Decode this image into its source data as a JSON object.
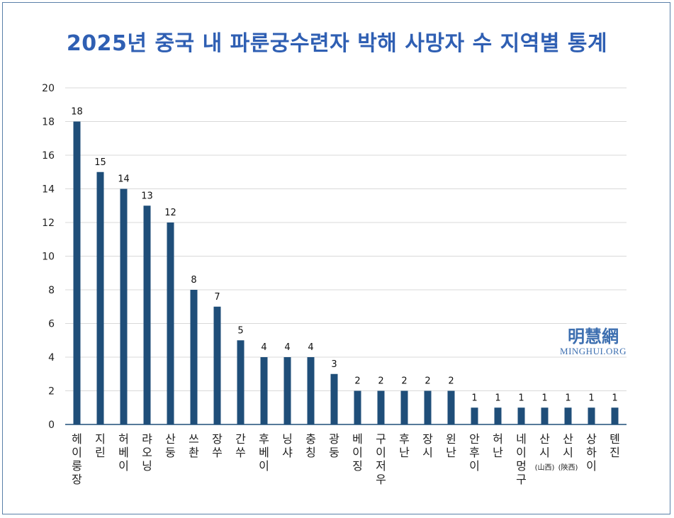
{
  "title": "2025년 중국 내 파룬궁수련자 박해 사망자 수 지역별 통계",
  "watermark": {
    "cjk": "明慧網",
    "latin": "MINGHUI.ORG"
  },
  "colors": {
    "bar": "#1f4e79",
    "title": "#2f5fb3",
    "grid": "#d9d9d9",
    "frame": "#5a7fa8"
  },
  "chart_data": {
    "type": "bar",
    "title": "2025년 중국 내 파룬궁수련자 박해 사망자 수 지역별 통계",
    "xlabel": "",
    "ylabel": "",
    "ylim": [
      0,
      20
    ],
    "yticks": [
      0,
      2,
      4,
      6,
      8,
      10,
      12,
      14,
      16,
      18,
      20
    ],
    "grid": true,
    "legend": "none",
    "data_labels": true,
    "categories": [
      "헤이룽장",
      "지린",
      "허베이",
      "랴오닝",
      "산둥",
      "쓰촨",
      "장쑤",
      "간쑤",
      "후베이",
      "닝샤",
      "충칭",
      "광둥",
      "베이징",
      "구이저우",
      "후난",
      "장시",
      "윈난",
      "안후이",
      "허난",
      "네이멍구",
      "산시(山西)",
      "산시(陝西)",
      "상하이",
      "톈진"
    ],
    "values": [
      18,
      15,
      14,
      13,
      12,
      8,
      7,
      5,
      4,
      4,
      4,
      3,
      2,
      2,
      2,
      2,
      2,
      1,
      1,
      1,
      1,
      1,
      1,
      1
    ]
  }
}
